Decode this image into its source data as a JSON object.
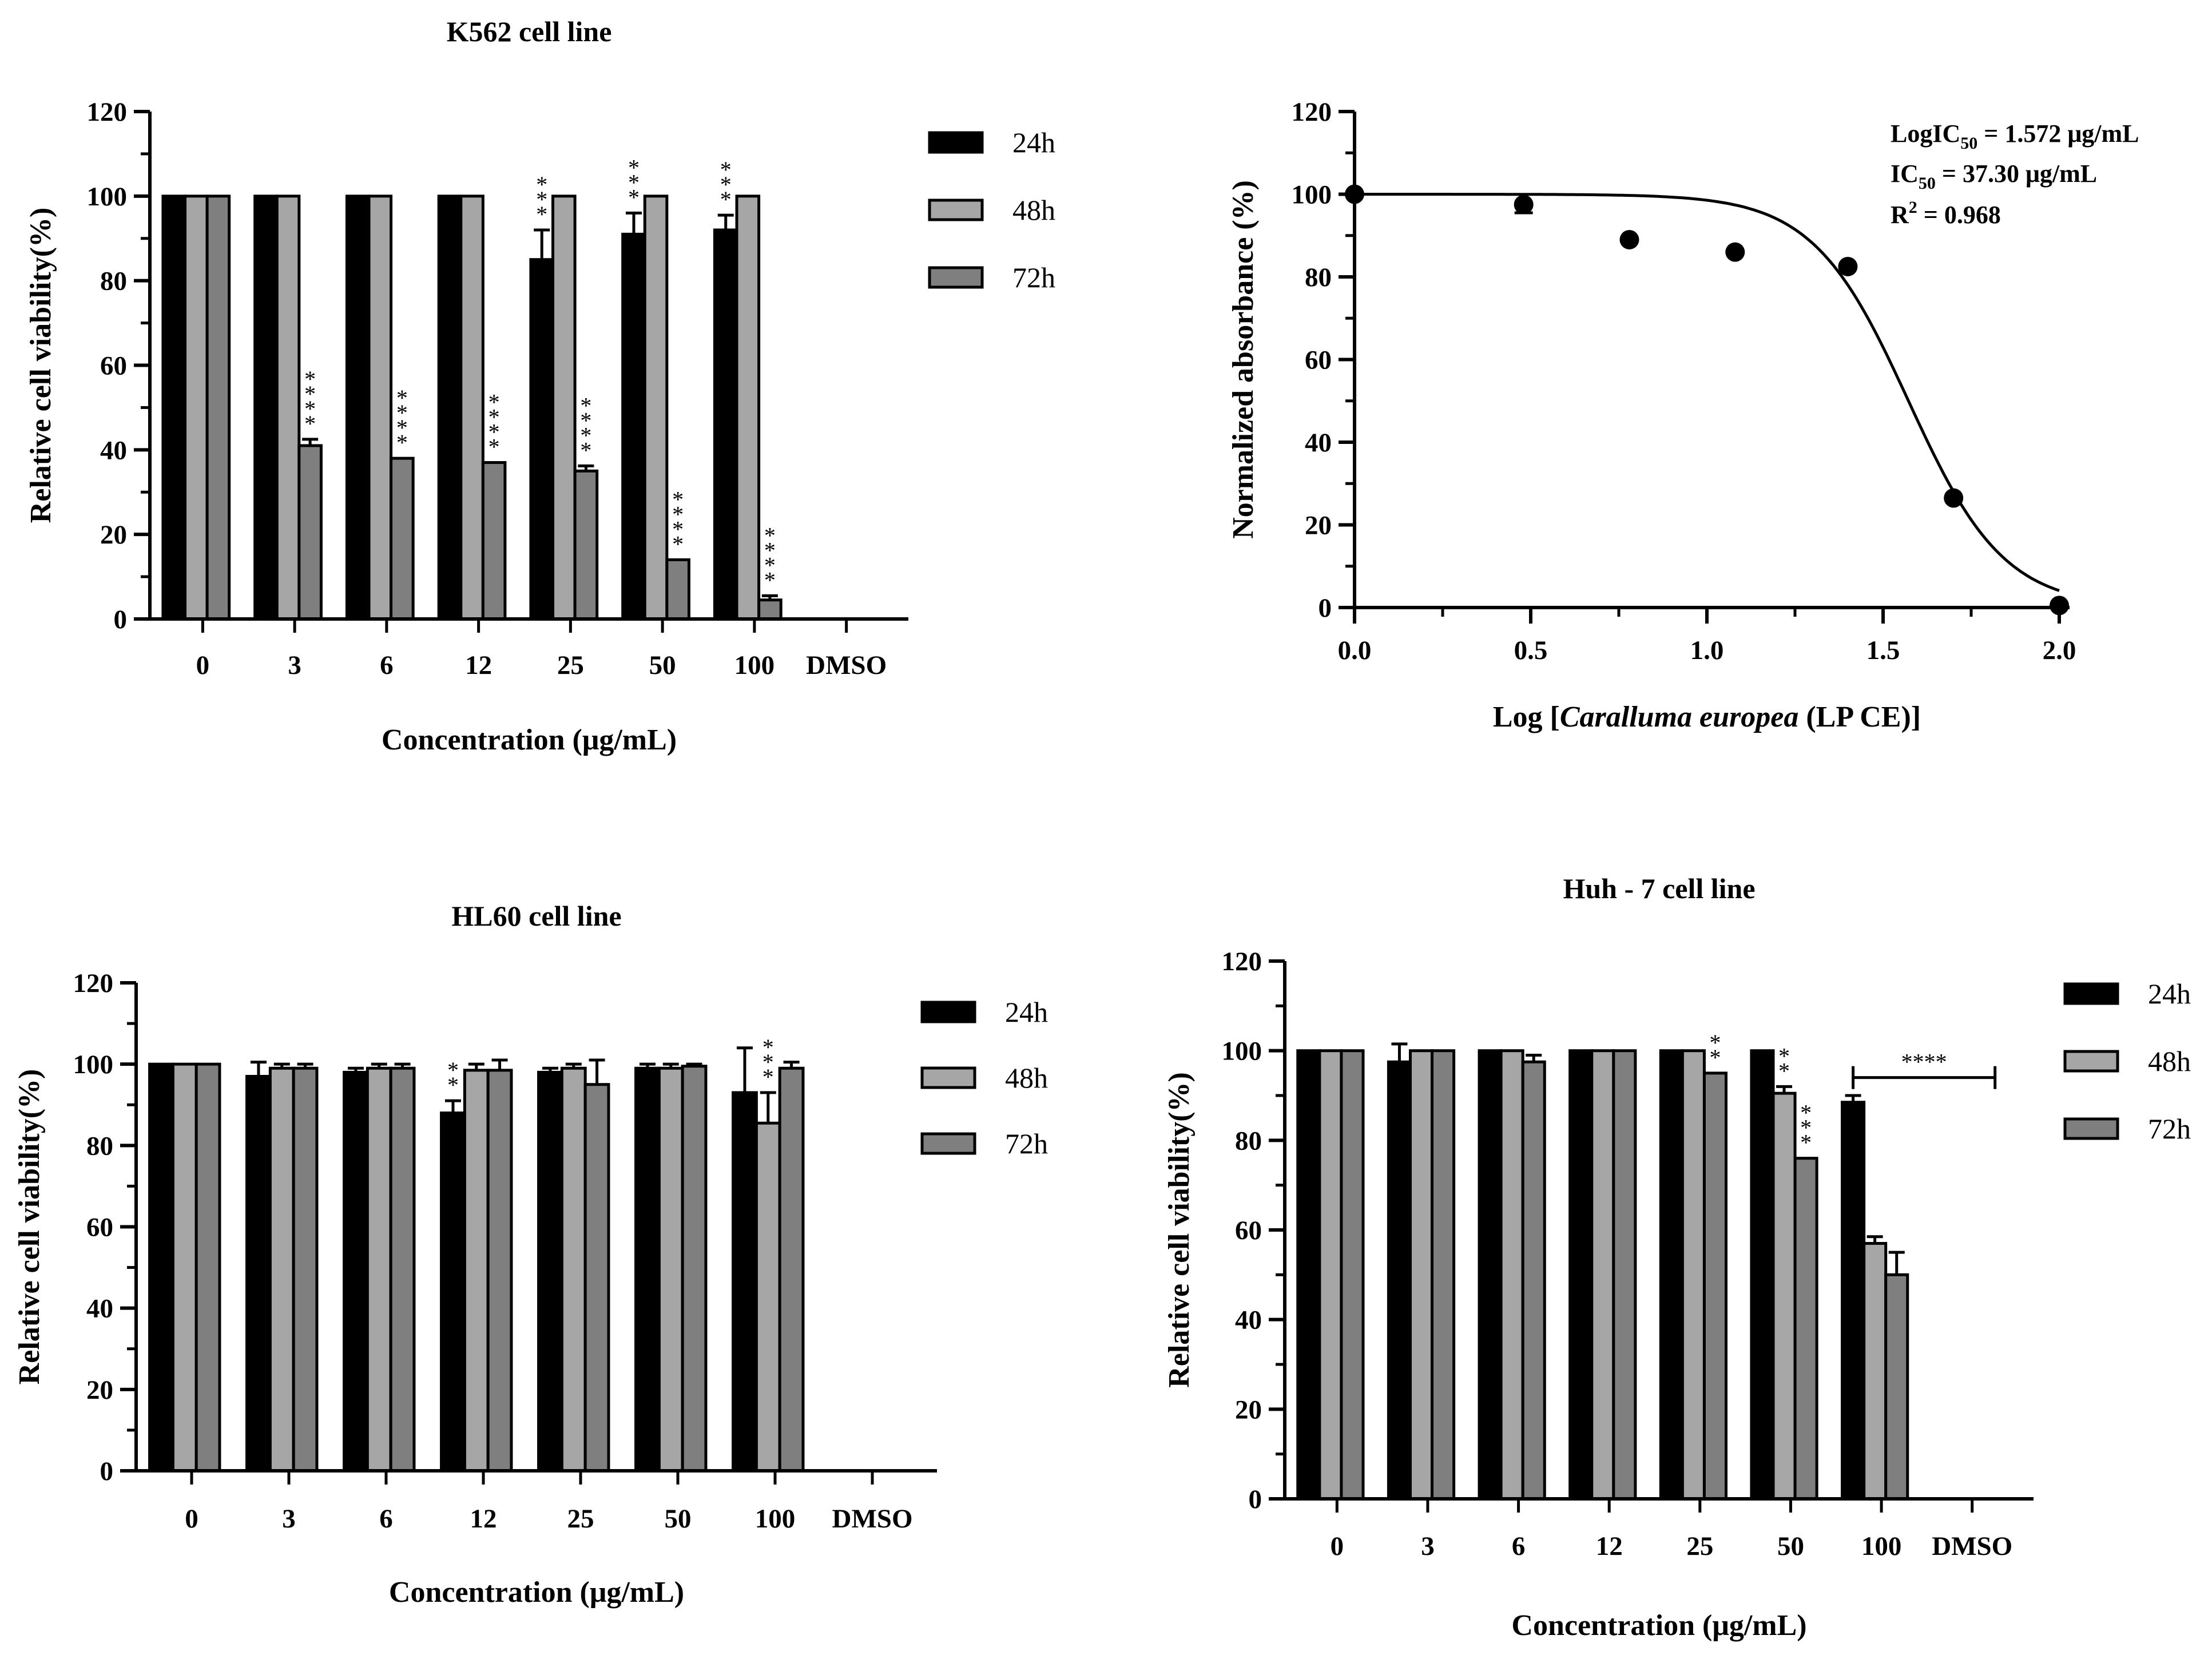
{
  "colors": {
    "h24": "#000000",
    "h48": "#a6a6a6",
    "h72": "#7f7f7f"
  },
  "chart_data": [
    {
      "id": "k562",
      "type": "bar",
      "title": "K562 cell line",
      "xlabel": "Concentration (μg/mL)",
      "ylabel": "Relative cell viability(%)",
      "ylim": [
        0,
        120
      ],
      "yticks": [
        "0",
        "20",
        "40",
        "60",
        "80",
        "100",
        "120"
      ],
      "categories": [
        "0",
        "3",
        "6",
        "12",
        "25",
        "50",
        "100",
        "DMSO"
      ],
      "legend_position": "right",
      "series": [
        {
          "name": "24h",
          "values": [
            100,
            100,
            100,
            100,
            85,
            91,
            92,
            0
          ],
          "errors": [
            0,
            0,
            0,
            0,
            7,
            5,
            3.5,
            0
          ],
          "stars": [
            "",
            "",
            "",
            "",
            "***",
            "***",
            "***",
            ""
          ]
        },
        {
          "name": "48h",
          "values": [
            100,
            100,
            100,
            100,
            100,
            100,
            100,
            0
          ],
          "errors": [
            0,
            0,
            0,
            0,
            0,
            0,
            0,
            0
          ],
          "stars": [
            "",
            "",
            "",
            "",
            "",
            "",
            "",
            ""
          ]
        },
        {
          "name": "72h",
          "values": [
            100,
            41,
            38,
            37,
            35,
            14,
            4.5,
            0
          ],
          "errors": [
            0,
            1.5,
            0,
            0,
            1.2,
            0,
            1,
            0
          ],
          "stars": [
            "",
            "****",
            "****",
            "****",
            "****",
            "****",
            "****",
            ""
          ]
        }
      ]
    },
    {
      "id": "ic50",
      "type": "scatter",
      "xlabel_prefix": "Log [",
      "xlabel_italic": "Caralluma europea",
      "xlabel_suffix": " (LP CE)]",
      "ylabel": "Normalized absorbance (%)",
      "xlim": [
        0,
        2
      ],
      "ylim": [
        0,
        120
      ],
      "xticks": [
        "0.0",
        "0.5",
        "1.0",
        "1.5",
        "2.0"
      ],
      "yticks": [
        "0",
        "20",
        "40",
        "60",
        "80",
        "100",
        "120"
      ],
      "points": [
        {
          "x": 0.0,
          "y": 100,
          "err": 0
        },
        {
          "x": 0.48,
          "y": 97.5,
          "err": 2
        },
        {
          "x": 0.78,
          "y": 89,
          "err": 0
        },
        {
          "x": 1.08,
          "y": 86,
          "err": 0
        },
        {
          "x": 1.4,
          "y": 82.5,
          "err": 0
        },
        {
          "x": 1.7,
          "y": 26.5,
          "err": 0
        },
        {
          "x": 2.0,
          "y": 0.5,
          "err": 0
        }
      ],
      "fit": {
        "top": 100,
        "bottom": 0,
        "logIC50": 1.572,
        "hill": 3.2
      },
      "annotation": {
        "line1_main": "LogIC",
        "line1_sub": "50",
        "line1_rest": " = 1.572 μg/mL",
        "line2_main": "IC",
        "line2_sub": "50",
        "line2_rest": " = 37.30 μg/mL",
        "line3_main": "R",
        "line3_sup": "2",
        "line3_rest": " = 0.968"
      }
    },
    {
      "id": "hl60",
      "type": "bar",
      "title": "HL60 cell line",
      "xlabel": "Concentration (μg/mL)",
      "ylabel": "Relative cell viability(%)",
      "ylim": [
        0,
        120
      ],
      "yticks": [
        "0",
        "20",
        "40",
        "60",
        "80",
        "100",
        "120"
      ],
      "categories": [
        "0",
        "3",
        "6",
        "12",
        "25",
        "50",
        "100",
        "DMSO"
      ],
      "legend_position": "right",
      "series": [
        {
          "name": "24h",
          "values": [
            100,
            97,
            98,
            88,
            98,
            99,
            93,
            0
          ],
          "errors": [
            0,
            3.5,
            1,
            3,
            1,
            1,
            11,
            0
          ],
          "stars": [
            "",
            "",
            "",
            "**",
            "",
            "",
            "",
            ""
          ]
        },
        {
          "name": "48h",
          "values": [
            100,
            99,
            99,
            98.5,
            99,
            99,
            85.5,
            0
          ],
          "errors": [
            0,
            1,
            1,
            1.5,
            1,
            1,
            7.5,
            0
          ],
          "stars": [
            "",
            "",
            "",
            "",
            "",
            "",
            "***",
            ""
          ]
        },
        {
          "name": "72h",
          "values": [
            100,
            99,
            99,
            98.5,
            95,
            99.5,
            99,
            0
          ],
          "errors": [
            0,
            1,
            1,
            2.5,
            6,
            0.5,
            1.5,
            0
          ],
          "stars": [
            "",
            "",
            "",
            "",
            "",
            "",
            "",
            ""
          ]
        }
      ]
    },
    {
      "id": "huh7",
      "type": "bar",
      "title": "Huh - 7 cell line",
      "xlabel": "Concentration (μg/mL)",
      "ylabel": "Relative cell viability(%)",
      "ylim": [
        0,
        120
      ],
      "yticks": [
        "0",
        "20",
        "40",
        "60",
        "80",
        "100",
        "120"
      ],
      "categories": [
        "0",
        "3",
        "6",
        "12",
        "25",
        "50",
        "100",
        "DMSO"
      ],
      "legend_position": "right",
      "bracket_label": "****",
      "series": [
        {
          "name": "24h",
          "values": [
            100,
            97.5,
            100,
            100,
            100,
            100,
            88.5,
            0
          ],
          "errors": [
            0,
            4,
            0,
            0,
            0,
            0,
            1.5,
            0
          ],
          "stars": [
            "",
            "",
            "",
            "",
            "",
            "",
            "",
            ""
          ]
        },
        {
          "name": "48h",
          "values": [
            100,
            100,
            100,
            100,
            100,
            90.5,
            57,
            0
          ],
          "errors": [
            0,
            0,
            0,
            0,
            0,
            1.5,
            1.5,
            0
          ],
          "stars": [
            "",
            "",
            "",
            "",
            "",
            "**",
            "",
            ""
          ]
        },
        {
          "name": "72h",
          "values": [
            100,
            100,
            97.5,
            100,
            95,
            76,
            50,
            0
          ],
          "errors": [
            0,
            0,
            1.5,
            0,
            0,
            0,
            5,
            0
          ],
          "stars": [
            "",
            "",
            "",
            "",
            "**",
            "***",
            "",
            ""
          ]
        }
      ]
    }
  ]
}
